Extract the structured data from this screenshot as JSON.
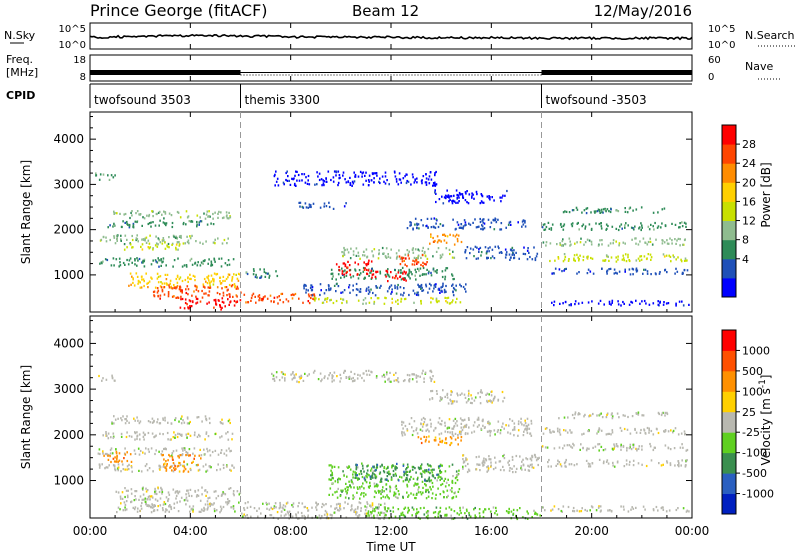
{
  "header": {
    "station": "Prince George (fitACF)",
    "beam": "Beam 12",
    "date": "12/May/2016"
  },
  "noise_panel": {
    "left_label": "N.Sky",
    "left_ticks": [
      "10^5",
      "10^0"
    ],
    "right_label": "N.Search",
    "right_ticks": [
      "10^5",
      "10^0"
    ]
  },
  "freq_panel": {
    "left_label_1": "Freq.",
    "left_label_2": "[MHz]",
    "left_ticks": [
      "18",
      "8"
    ],
    "right_label": "Nave",
    "right_ticks": [
      "60",
      "0"
    ],
    "cpid_label": "CPID"
  },
  "cpid_segments": [
    {
      "label": "twofsound 3503",
      "start_hour": 0
    },
    {
      "label": "themis 3300",
      "start_hour": 6
    },
    {
      "label": "twofsound -3503",
      "start_hour": 18
    }
  ],
  "time_axis": {
    "title": "Time UT",
    "ticks": [
      "00:00",
      "04:00",
      "08:00",
      "12:00",
      "16:00",
      "20:00",
      "00:00"
    ]
  },
  "power_panel": {
    "ylabel": "Slant Range [km]",
    "yticks": [
      "1000",
      "2000",
      "3000",
      "4000"
    ],
    "colorbar_title": "Power [dB]",
    "colorbar_ticks": [
      "28",
      "24",
      "20",
      "16",
      "12",
      "8",
      "4"
    ],
    "colors": [
      "#0000ff",
      "#1f50b8",
      "#2e8b57",
      "#8fbc8f",
      "#c8e000",
      "#ffd000",
      "#ff8c00",
      "#ff4500",
      "#ff0000"
    ]
  },
  "velocity_panel": {
    "ylabel": "Slant Range [km]",
    "yticks": [
      "1000",
      "2000",
      "3000",
      "4000"
    ],
    "colorbar_title": "Velocity [m s",
    "colorbar_title_sup": "-1",
    "colorbar_title_end": "]",
    "colorbar_ticks": [
      "1000",
      "500",
      "100",
      "25",
      "-25",
      "-100",
      "-500",
      "-1000"
    ],
    "colors": [
      "#0020c0",
      "#2a5fc0",
      "#3a8f4f",
      "#5fd020",
      "#b8b8b0",
      "#ffd000",
      "#ff9000",
      "#ff5000",
      "#ff0000"
    ],
    "ground_scatter_color": "#b8b8b0"
  },
  "chart_data": [
    {
      "type": "line",
      "name_ref": "noise_panel",
      "x": [
        0,
        2,
        4,
        6,
        8,
        10,
        12,
        14,
        16,
        18,
        20,
        22,
        24
      ],
      "y_log10": [
        2.2,
        2.4,
        2.6,
        2.5,
        2.3,
        2.2,
        2.2,
        2.1,
        2.1,
        2.0,
        2.0,
        2.0,
        2.0
      ]
    },
    {
      "type": "area",
      "name_ref": "freq_panel",
      "segments": [
        {
          "x_range": [
            0,
            6
          ],
          "freq_band_mhz": [
            10,
            12
          ],
          "style": "dense"
        },
        {
          "x_range": [
            6,
            18
          ],
          "freq_band_mhz": [
            10,
            11
          ],
          "style": "sparse"
        },
        {
          "x_range": [
            18,
            24
          ],
          "freq_band_mhz": [
            10,
            12
          ],
          "style": "dense"
        }
      ]
    },
    {
      "type": "heatmap",
      "name_ref": "power_panel",
      "xlim": [
        0,
        24
      ],
      "ylim": [
        180,
        4600
      ],
      "blobs": [
        {
          "x": 0.2,
          "y": 3200,
          "w": 0.8,
          "h": 160,
          "c": 2
        },
        {
          "x": 0.8,
          "y": 2350,
          "w": 4.8,
          "h": 170,
          "c": 3
        },
        {
          "x": 0.4,
          "y": 2150,
          "w": 4.5,
          "h": 150,
          "c": 2
        },
        {
          "x": 0.2,
          "y": 1800,
          "w": 5.4,
          "h": 200,
          "c": 3
        },
        {
          "x": 1.2,
          "y": 1650,
          "w": 2.4,
          "h": 140,
          "c": 4
        },
        {
          "x": 0.3,
          "y": 1300,
          "w": 5.5,
          "h": 190,
          "c": 2
        },
        {
          "x": 1.5,
          "y": 900,
          "w": 4.5,
          "h": 320,
          "c": 5
        },
        {
          "x": 2.5,
          "y": 650,
          "w": 3.5,
          "h": 300,
          "c": 7
        },
        {
          "x": 3.5,
          "y": 380,
          "w": 2.5,
          "h": 250,
          "c": 8
        },
        {
          "x": 6.0,
          "y": 500,
          "w": 3.0,
          "h": 220,
          "c": 7
        },
        {
          "x": 6.2,
          "y": 1050,
          "w": 1.4,
          "h": 200,
          "c": 2
        },
        {
          "x": 7.3,
          "y": 3150,
          "w": 6.5,
          "h": 320,
          "c": 0
        },
        {
          "x": 8.2,
          "y": 2550,
          "w": 2.0,
          "h": 140,
          "c": 1
        },
        {
          "x": 8.5,
          "y": 700,
          "w": 6.5,
          "h": 260,
          "c": 1
        },
        {
          "x": 8.8,
          "y": 450,
          "w": 6.0,
          "h": 140,
          "c": 4
        },
        {
          "x": 9.5,
          "y": 1050,
          "w": 5.0,
          "h": 260,
          "c": 2
        },
        {
          "x": 10.0,
          "y": 1500,
          "w": 4.5,
          "h": 250,
          "c": 3
        },
        {
          "x": 9.8,
          "y": 1180,
          "w": 1.4,
          "h": 320,
          "c": 8
        },
        {
          "x": 11.2,
          "y": 1000,
          "w": 1.4,
          "h": 250,
          "c": 8
        },
        {
          "x": 12.3,
          "y": 1350,
          "w": 1.2,
          "h": 280,
          "c": 7
        },
        {
          "x": 13.5,
          "y": 1800,
          "w": 1.3,
          "h": 250,
          "c": 6
        },
        {
          "x": 12.6,
          "y": 2150,
          "w": 4.8,
          "h": 250,
          "c": 1
        },
        {
          "x": 13.6,
          "y": 2750,
          "w": 3.0,
          "h": 300,
          "c": 0
        },
        {
          "x": 14.8,
          "y": 1500,
          "w": 3.0,
          "h": 300,
          "c": 1
        },
        {
          "x": 18.0,
          "y": 2100,
          "w": 5.8,
          "h": 170,
          "c": 2
        },
        {
          "x": 18.6,
          "y": 2450,
          "w": 4.5,
          "h": 130,
          "c": 2
        },
        {
          "x": 18.0,
          "y": 1750,
          "w": 5.8,
          "h": 160,
          "c": 3
        },
        {
          "x": 18.2,
          "y": 1400,
          "w": 5.6,
          "h": 170,
          "c": 4
        },
        {
          "x": 18.3,
          "y": 1100,
          "w": 5.5,
          "h": 130,
          "c": 1
        },
        {
          "x": 18.0,
          "y": 400,
          "w": 5.9,
          "h": 110,
          "c": 0
        }
      ]
    },
    {
      "type": "heatmap",
      "name_ref": "velocity_panel",
      "xlim": [
        0,
        24
      ],
      "ylim": [
        180,
        4600
      ],
      "blobs": [
        {
          "x": 0.2,
          "y": 3250,
          "w": 0.8,
          "h": 140,
          "c": 4
        },
        {
          "x": 0.8,
          "y": 2350,
          "w": 4.8,
          "h": 170,
          "c": 4
        },
        {
          "x": 0.3,
          "y": 2000,
          "w": 5.4,
          "h": 170,
          "c": 4
        },
        {
          "x": 0.3,
          "y": 1650,
          "w": 5.4,
          "h": 170,
          "c": 4
        },
        {
          "x": 0.3,
          "y": 1300,
          "w": 5.5,
          "h": 170,
          "c": 4
        },
        {
          "x": 1.0,
          "y": 600,
          "w": 5.0,
          "h": 550,
          "c": 4
        },
        {
          "x": 0.5,
          "y": 1550,
          "w": 1.2,
          "h": 250,
          "c": 6
        },
        {
          "x": 2.8,
          "y": 1400,
          "w": 1.6,
          "h": 380,
          "c": 6
        },
        {
          "x": 6.0,
          "y": 300,
          "w": 5.8,
          "h": 500,
          "c": 4
        },
        {
          "x": 7.2,
          "y": 3300,
          "w": 6.5,
          "h": 250,
          "c": 4
        },
        {
          "x": 9.5,
          "y": 1000,
          "w": 5.2,
          "h": 750,
          "c": 3
        },
        {
          "x": 10.5,
          "y": 1200,
          "w": 3.5,
          "h": 400,
          "c": 2
        },
        {
          "x": 12.8,
          "y": 1900,
          "w": 2.0,
          "h": 200,
          "c": 6
        },
        {
          "x": 12.4,
          "y": 2200,
          "w": 5.2,
          "h": 400,
          "c": 4
        },
        {
          "x": 13.5,
          "y": 2850,
          "w": 3.0,
          "h": 300,
          "c": 4
        },
        {
          "x": 11.0,
          "y": 300,
          "w": 7.0,
          "h": 280,
          "c": 3
        },
        {
          "x": 14.8,
          "y": 1400,
          "w": 3.2,
          "h": 400,
          "c": 4
        },
        {
          "x": 18.0,
          "y": 2100,
          "w": 5.8,
          "h": 150,
          "c": 4
        },
        {
          "x": 18.6,
          "y": 2450,
          "w": 4.5,
          "h": 130,
          "c": 4
        },
        {
          "x": 18.0,
          "y": 1750,
          "w": 5.8,
          "h": 150,
          "c": 4
        },
        {
          "x": 18.2,
          "y": 1400,
          "w": 5.6,
          "h": 150,
          "c": 4
        },
        {
          "x": 18.0,
          "y": 400,
          "w": 5.9,
          "h": 120,
          "c": 4
        }
      ]
    }
  ]
}
